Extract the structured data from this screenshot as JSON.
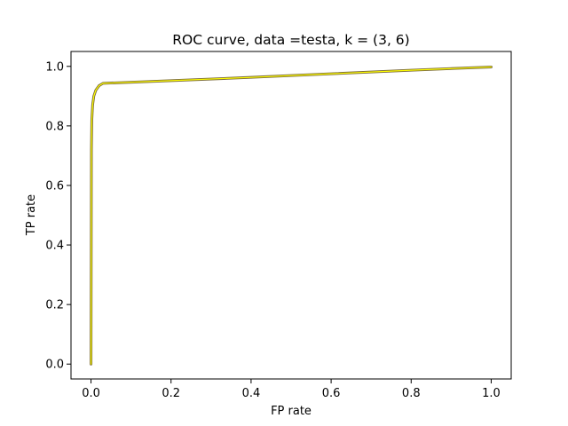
{
  "chart_data": {
    "type": "line",
    "title": "ROC curve, data =testa, k = (3, 6)",
    "xlabel": "FP rate",
    "ylabel": "TP rate",
    "xlim": [
      -0.05,
      1.05
    ],
    "ylim": [
      -0.05,
      1.05
    ],
    "xticks": [
      "0.0",
      "0.2",
      "0.4",
      "0.6",
      "0.8",
      "1.0"
    ],
    "yticks": [
      "0.0",
      "0.2",
      "0.4",
      "0.6",
      "0.8",
      "1.0"
    ],
    "grid": false,
    "series": [
      {
        "color": "#7a6a3a",
        "x": [
          0.0,
          0.001,
          0.002,
          0.004,
          0.007,
          0.012,
          0.02,
          0.03,
          0.2,
          0.4,
          0.6,
          0.8,
          1.0
        ],
        "y": [
          0.0,
          0.72,
          0.82,
          0.87,
          0.9,
          0.92,
          0.935,
          0.943,
          0.952,
          0.963,
          0.975,
          0.987,
          0.998
        ]
      },
      {
        "color": "#ffff00",
        "x": [
          0.0,
          0.001,
          0.002,
          0.004,
          0.007,
          0.012,
          0.02,
          0.03,
          0.2,
          0.4,
          0.6,
          0.8,
          1.0
        ],
        "y": [
          0.0,
          0.72,
          0.82,
          0.87,
          0.9,
          0.92,
          0.935,
          0.943,
          0.952,
          0.963,
          0.975,
          0.987,
          0.998
        ]
      }
    ]
  }
}
